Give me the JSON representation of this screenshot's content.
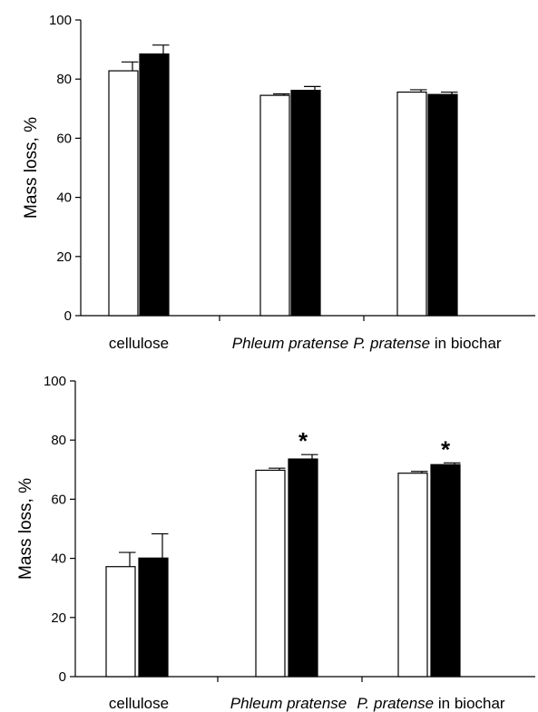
{
  "chart_data": [
    {
      "type": "bar",
      "categories": [
        {
          "prefix": "",
          "italic": "",
          "suffix": "cellulose"
        },
        {
          "prefix": "",
          "italic": "Phleum pratense",
          "suffix": ""
        },
        {
          "prefix": "",
          "italic": "P. pratense",
          "suffix": " in biochar"
        }
      ],
      "series": [
        {
          "color": "#ffffff",
          "values": [
            82.8,
            74.5,
            75.6
          ],
          "errors": [
            3.0,
            0.5,
            0.8
          ]
        },
        {
          "color": "#000000",
          "values": [
            88.5,
            76.2,
            74.8
          ],
          "errors": [
            3.0,
            1.3,
            0.8
          ]
        }
      ],
      "ylabel": "Mass loss,  %",
      "ylim": [
        0,
        100
      ],
      "yticks": [
        0,
        20,
        40,
        60,
        80,
        100
      ],
      "significance": [
        "",
        "",
        ""
      ],
      "grid": false
    },
    {
      "type": "bar",
      "categories": [
        {
          "prefix": "",
          "italic": "",
          "suffix": "cellulose"
        },
        {
          "prefix": "",
          "italic": "Phleum pratense",
          "suffix": ""
        },
        {
          "prefix": "",
          "italic": "P. pratense",
          "suffix": " in biochar"
        }
      ],
      "series": [
        {
          "color": "#ffffff",
          "values": [
            37.2,
            69.8,
            68.8
          ],
          "errors": [
            4.8,
            0.7,
            0.6
          ]
        },
        {
          "color": "#000000",
          "values": [
            40.1,
            73.6,
            71.7
          ],
          "errors": [
            8.2,
            1.5,
            0.6
          ]
        }
      ],
      "ylabel": "Mass loss, %",
      "ylim": [
        0,
        100
      ],
      "yticks": [
        0,
        20,
        40,
        60,
        80,
        100
      ],
      "significance": [
        "",
        "*",
        "*"
      ],
      "grid": false
    }
  ]
}
